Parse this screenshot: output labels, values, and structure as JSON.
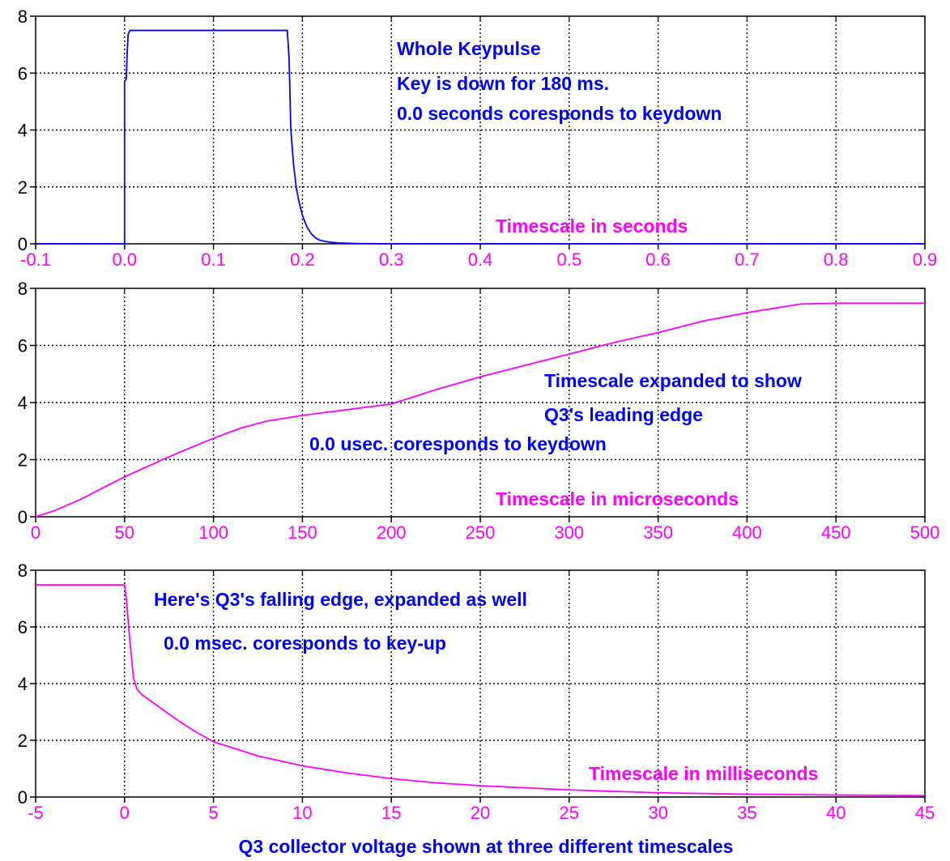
{
  "figure": {
    "caption": "Q3 collector voltage shown at three different timescales",
    "colors": {
      "annotation": "#0000ff",
      "tick_x": "#ff00ff",
      "tick_y": "#000000",
      "grid": "#000000",
      "frame": "#000000"
    }
  },
  "chart_data": [
    {
      "type": "line",
      "title": "",
      "xlabel": "",
      "ylabel": "",
      "xlim": [
        -0.1,
        0.9
      ],
      "ylim": [
        0,
        8
      ],
      "xticks": [
        -0.1,
        0.0,
        0.1,
        0.2,
        0.3,
        0.4,
        0.5,
        0.6,
        0.7,
        0.8,
        0.9
      ],
      "xtick_labels": [
        "-0.1",
        "0.0",
        "0.1",
        "0.2",
        "0.3",
        "0.4",
        "0.5",
        "0.6",
        "0.7",
        "0.8",
        "0.9"
      ],
      "yticks": [
        0,
        2,
        4,
        6,
        8
      ],
      "ytick_labels": [
        "0",
        "2",
        "4",
        "6",
        "8"
      ],
      "grid": true,
      "series": [
        {
          "color": "#0000ff",
          "x": [
            -0.1,
            0.0,
            0.0,
            0.002,
            0.003,
            0.004,
            0.006,
            0.05,
            0.1,
            0.15,
            0.183,
            0.185,
            0.187,
            0.19,
            0.193,
            0.196,
            0.2,
            0.205,
            0.21,
            0.215,
            0.22,
            0.23,
            0.24,
            0.25,
            0.26,
            0.3,
            0.5,
            0.7,
            0.9
          ],
          "y": [
            0.0,
            0.0,
            5.7,
            5.8,
            6.8,
            7.35,
            7.5,
            7.5,
            7.5,
            7.5,
            7.5,
            6.5,
            4.0,
            2.8,
            2.0,
            1.5,
            1.0,
            0.6,
            0.35,
            0.2,
            0.12,
            0.06,
            0.03,
            0.02,
            0.01,
            0.0,
            0.0,
            0.0,
            0.0
          ]
        }
      ],
      "annotations": [
        {
          "text": "Whole Keypulse",
          "color": "#0000ff",
          "kind": "anno"
        },
        {
          "text": "Key is down for 180 ms.",
          "color": "#0000ff",
          "kind": "anno"
        },
        {
          "text": "0.0 seconds coresponds to keydown",
          "color": "#0000ff",
          "kind": "anno"
        },
        {
          "text": "Timescale in seconds",
          "color": "#ff00ff",
          "kind": "anno"
        }
      ]
    },
    {
      "type": "line",
      "title": "",
      "xlabel": "",
      "ylabel": "",
      "xlim": [
        0,
        500
      ],
      "ylim": [
        0,
        8
      ],
      "xticks": [
        0,
        50,
        100,
        150,
        200,
        250,
        300,
        350,
        400,
        450,
        500
      ],
      "xtick_labels": [
        "0",
        "50",
        "100",
        "150",
        "200",
        "250",
        "300",
        "350",
        "400",
        "450",
        "500"
      ],
      "yticks": [
        0,
        2,
        4,
        6,
        8
      ],
      "ytick_labels": [
        "0",
        "2",
        "4",
        "6",
        "8"
      ],
      "grid": true,
      "series": [
        {
          "color": "#ff00ff",
          "x": [
            0,
            10,
            25,
            50,
            75,
            100,
            115,
            130,
            150,
            175,
            200,
            225,
            250,
            275,
            300,
            325,
            350,
            375,
            400,
            415,
            430,
            450,
            475,
            500
          ],
          "y": [
            0.0,
            0.2,
            0.6,
            1.4,
            2.1,
            2.75,
            3.1,
            3.35,
            3.55,
            3.75,
            3.95,
            4.45,
            4.9,
            5.3,
            5.7,
            6.1,
            6.45,
            6.85,
            7.15,
            7.3,
            7.45,
            7.48,
            7.48,
            7.48
          ]
        }
      ],
      "annotations": [
        {
          "text": "Timescale expanded to show",
          "color": "#0000ff",
          "kind": "anno"
        },
        {
          "text": "Q3's leading edge",
          "color": "#0000ff",
          "kind": "anno"
        },
        {
          "text": "0.0 usec. coresponds to keydown",
          "color": "#0000ff",
          "kind": "anno"
        },
        {
          "text": "Timescale in microseconds",
          "color": "#ff00ff",
          "kind": "anno"
        }
      ]
    },
    {
      "type": "line",
      "title": "",
      "xlabel": "",
      "ylabel": "",
      "xlim": [
        -5,
        45
      ],
      "ylim": [
        0,
        8
      ],
      "xticks": [
        -5,
        0,
        5,
        10,
        15,
        20,
        25,
        30,
        35,
        40,
        45
      ],
      "xtick_labels": [
        "-5",
        "0",
        "5",
        "10",
        "15",
        "20",
        "25",
        "30",
        "35",
        "40",
        "45"
      ],
      "yticks": [
        0,
        2,
        4,
        6,
        8
      ],
      "ytick_labels": [
        "0",
        "2",
        "4",
        "6",
        "8"
      ],
      "grid": true,
      "series": [
        {
          "color": "#ff00ff",
          "x": [
            -5,
            -2,
            0,
            0.1,
            0.3,
            0.5,
            0.7,
            1.0,
            2,
            3,
            4,
            5,
            7.5,
            10,
            12.5,
            15,
            17.5,
            20,
            25,
            30,
            35,
            40,
            45
          ],
          "y": [
            7.48,
            7.48,
            7.48,
            7.0,
            5.5,
            4.2,
            3.8,
            3.6,
            3.15,
            2.7,
            2.3,
            1.95,
            1.45,
            1.1,
            0.85,
            0.65,
            0.5,
            0.4,
            0.25,
            0.15,
            0.1,
            0.07,
            0.05
          ]
        }
      ],
      "annotations": [
        {
          "text": "Here's Q3's falling edge, expanded as well",
          "color": "#0000ff",
          "kind": "anno"
        },
        {
          "text": "0.0 msec. coresponds to key-up",
          "color": "#0000ff",
          "kind": "anno"
        },
        {
          "text": "Timescale in milliseconds",
          "color": "#ff00ff",
          "kind": "anno"
        }
      ]
    }
  ]
}
